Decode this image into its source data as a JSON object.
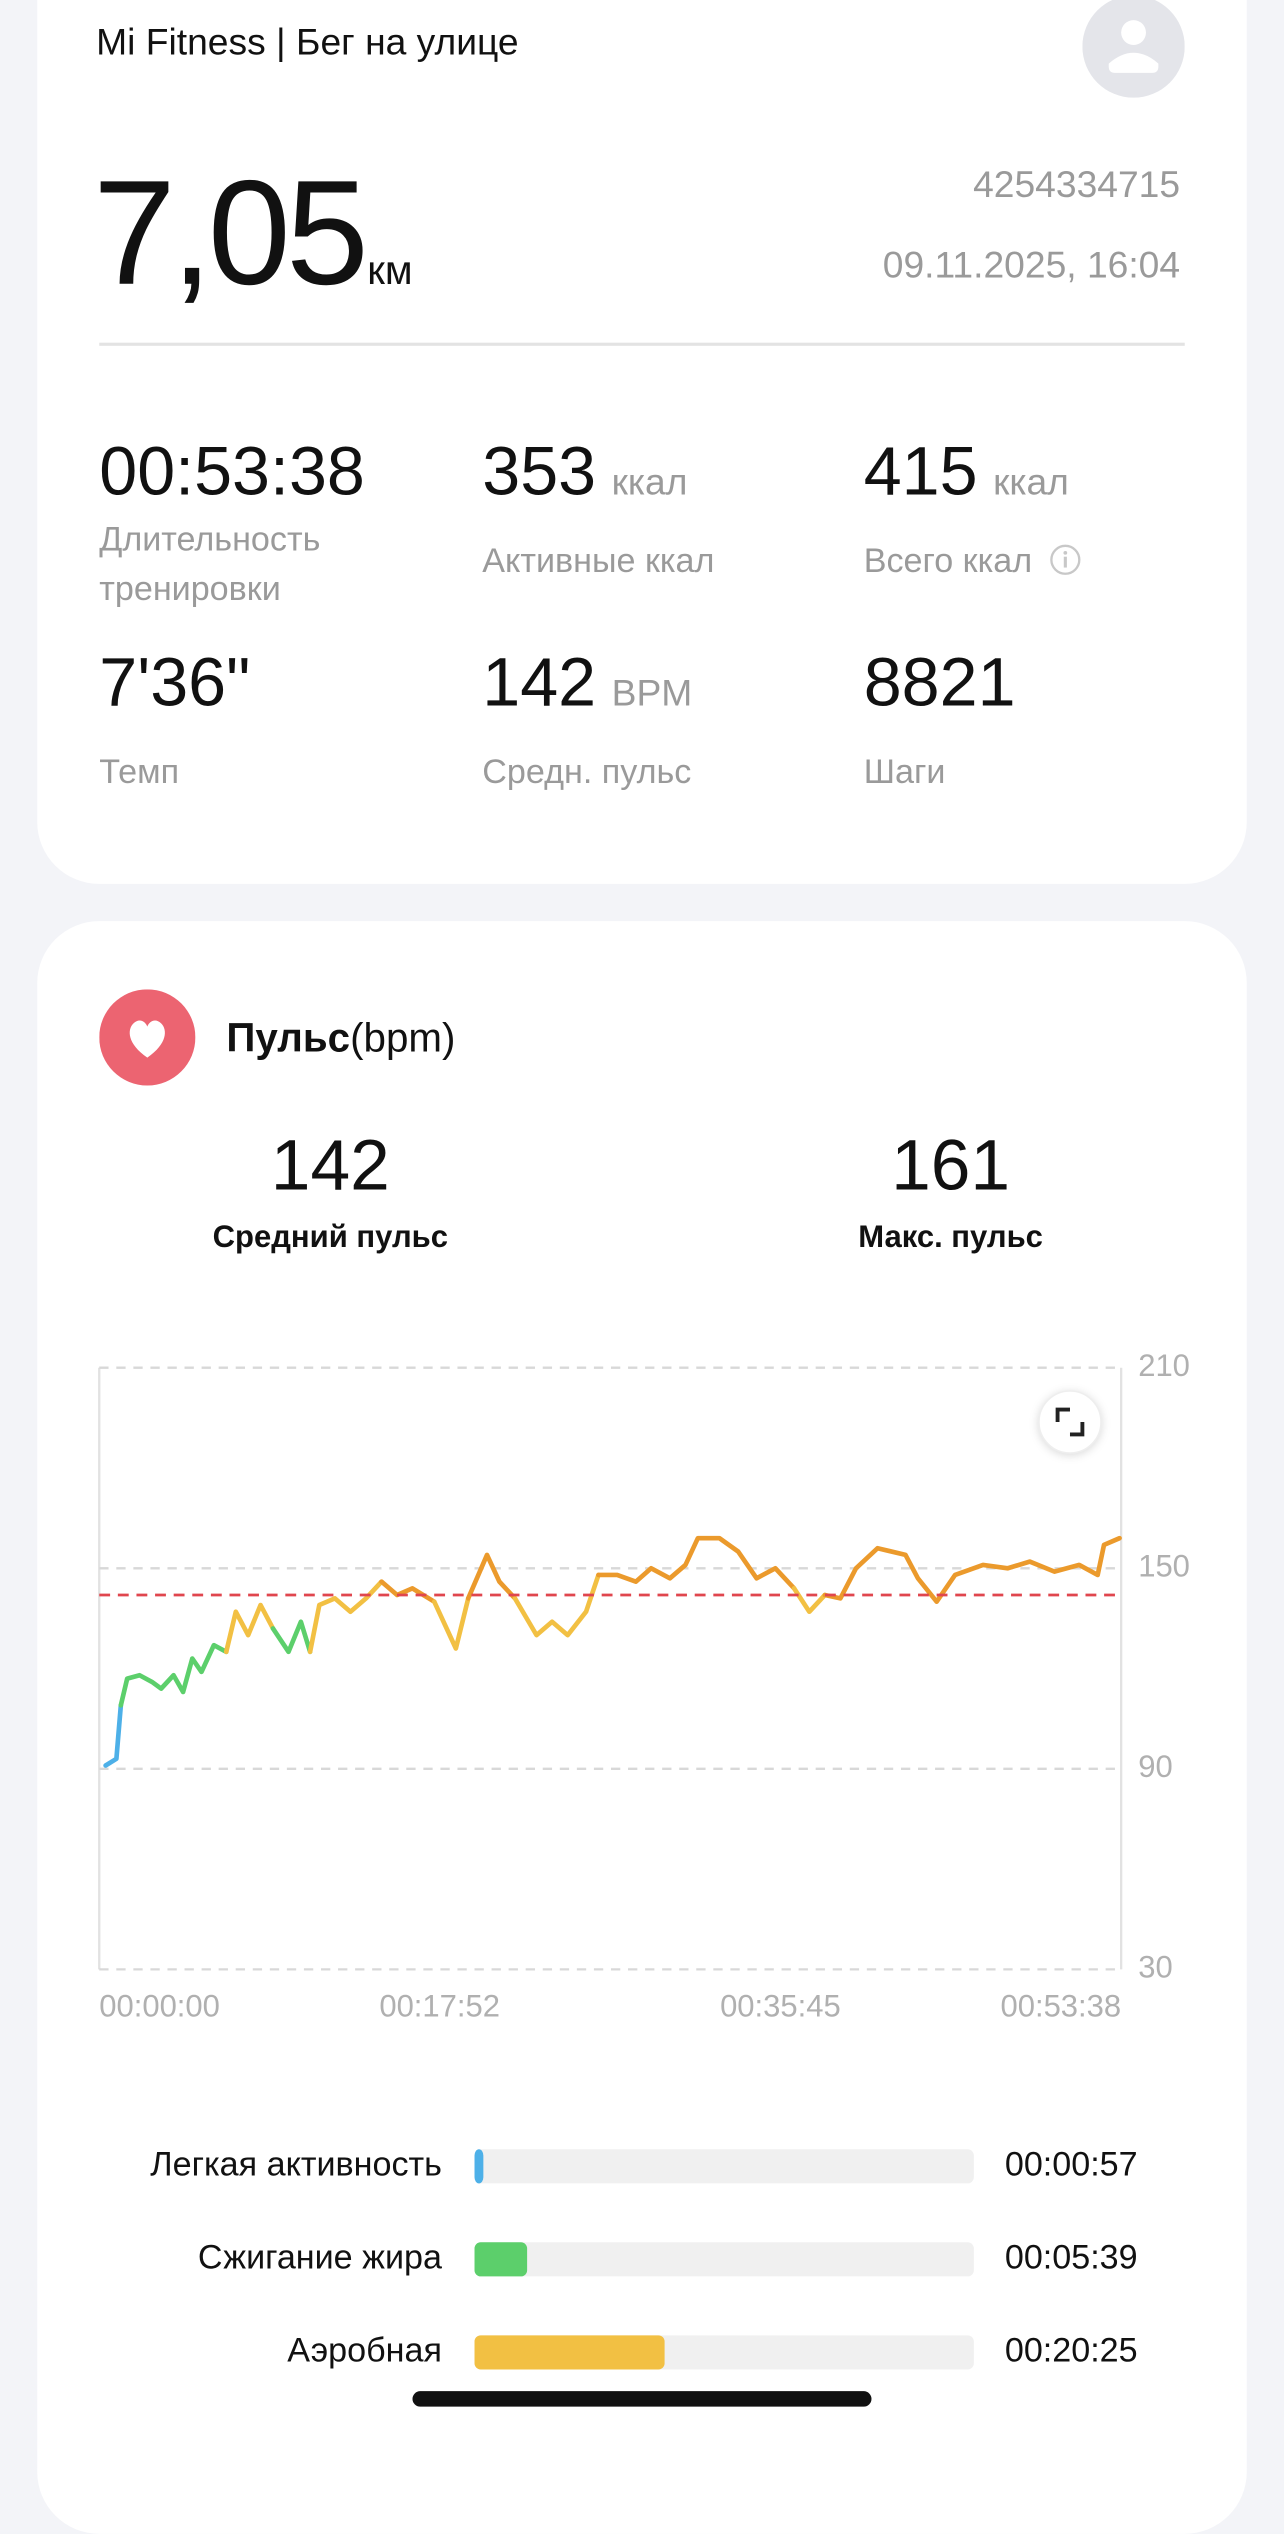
{
  "header": {
    "title": "Mi Fitness | Бег на улице"
  },
  "summary": {
    "distance": "7,05",
    "distance_unit": "км",
    "id": "4254334715",
    "datetime": "09.11.2025, 16:04"
  },
  "stats": [
    {
      "value": "00:53:38",
      "label": "Длительность тренировки"
    },
    {
      "value": "353",
      "unit": "ккал",
      "label": "Активные ккал"
    },
    {
      "value": "415",
      "unit": "ккал",
      "label": "Всего ккал"
    },
    {
      "value": "7'36\"",
      "label": "Темп"
    },
    {
      "value": "142",
      "unit": "BPM",
      "label": "Средн. пульс"
    },
    {
      "value": "8821",
      "label": "Шаги"
    }
  ],
  "pulse_card": {
    "title": "Пульс",
    "title_unit": "(bpm)",
    "avg": {
      "value": 142,
      "label": "Средний пульс"
    },
    "max": {
      "value": 161,
      "label": "Макс. пульс"
    },
    "chart": {
      "type": "line",
      "xlim": [
        0,
        3218
      ],
      "xticks": [
        {
          "value": 0,
          "label": "00:00:00"
        },
        {
          "value": 1072,
          "label": "00:17:52"
        },
        {
          "value": 2145,
          "label": "00:35:45"
        },
        {
          "value": 3218,
          "label": "00:53:38"
        }
      ],
      "ylim": [
        30,
        210
      ],
      "yticks": [
        30,
        90,
        150,
        210
      ],
      "grid": true,
      "series": [
        {
          "color": "#4db0e8",
          "x": [
            20,
            54,
            68
          ],
          "values": [
            91,
            93,
            109
          ]
        },
        {
          "color": "#5ccf6b",
          "x": [
            68,
            88,
            127,
            166,
            195,
            234,
            264,
            293,
            322,
            361,
            400
          ],
          "values": [
            109,
            117,
            118,
            116,
            114,
            118,
            113,
            123,
            119,
            127,
            125
          ]
        },
        {
          "color": "#f2c043",
          "x": [
            400,
            430,
            469,
            508,
            547
          ],
          "values": [
            125,
            137,
            130,
            139,
            132
          ]
        },
        {
          "color": "#5ccf6b",
          "x": [
            547,
            596,
            635,
            664
          ],
          "values": [
            132,
            125,
            134,
            125
          ]
        },
        {
          "color": "#f2c043",
          "x": [
            664,
            693,
            742,
            791,
            840,
            889
          ],
          "values": [
            125,
            139,
            141,
            137,
            141,
            146
          ]
        },
        {
          "color": "#eb9a2c",
          "x": [
            889,
            938,
            986,
            1055
          ],
          "values": [
            146,
            142,
            144,
            140
          ]
        },
        {
          "color": "#f2c043",
          "x": [
            1055,
            1123,
            1162
          ],
          "values": [
            140,
            126,
            141
          ]
        },
        {
          "color": "#eb9a2c",
          "x": [
            1162,
            1221,
            1260,
            1309
          ],
          "values": [
            141,
            154,
            146,
            141
          ]
        },
        {
          "color": "#f2c043",
          "x": [
            1309,
            1377,
            1426,
            1475,
            1533,
            1572
          ],
          "values": [
            141,
            130,
            134,
            130,
            137,
            148
          ]
        },
        {
          "color": "#eb9a2c",
          "x": [
            1572,
            1631,
            1690,
            1738,
            1797,
            1846,
            1885,
            1953,
            2012,
            2070,
            2129,
            2188
          ],
          "values": [
            148,
            148,
            146,
            150,
            147,
            151,
            159,
            159,
            155,
            147,
            150,
            144
          ]
        },
        {
          "color": "#f2c043",
          "x": [
            2188,
            2236,
            2285
          ],
          "values": [
            144,
            137,
            142
          ]
        },
        {
          "color": "#eb9a2c",
          "x": [
            2285,
            2334,
            2383,
            2451,
            2539,
            2578,
            2637,
            2695,
            2783,
            2861,
            2930,
            3008,
            3086,
            3144,
            3164,
            3213
          ],
          "values": [
            142,
            141,
            150,
            156,
            154,
            147,
            140,
            148,
            151,
            150,
            152,
            149,
            151,
            148,
            157,
            159
          ]
        }
      ]
    }
  },
  "zones": [
    {
      "name": "Легкая активность",
      "time": "00:00:57",
      "color": "#4db0e8"
    },
    {
      "name": "Сжигание жира",
      "time": "00:05:39",
      "color": "#5ccf6b"
    },
    {
      "name": "Аэробная",
      "time": "00:20:25",
      "color": "#f2c043"
    }
  ]
}
